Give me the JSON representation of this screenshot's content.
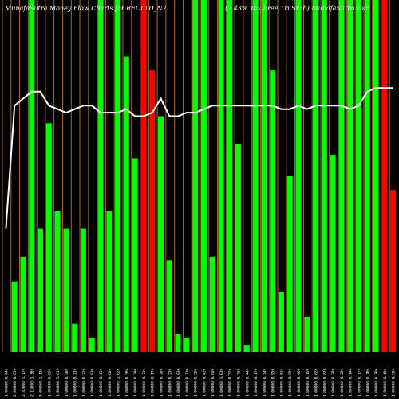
{
  "header": {
    "left_title": "MunafaSutra  Money Flow  Charts for RECLTD_N7",
    "right_title": "(7.43% Tax Free Tri  Sr3b) MunafaSutra.com"
  },
  "colors": {
    "background": "#000000",
    "inflow": "#00ff00",
    "outflow": "#ff0000",
    "gridline": "#b5651d",
    "price_line": "#ffffff",
    "text": "#ffffff"
  },
  "chart_data": {
    "type": "bar",
    "ylim": [
      0,
      100
    ],
    "grid": "vertical lines between bars",
    "categories": [
      "1.00000 0.04%",
      "2.60000 0.61%",
      "2.43000 1.17%",
      "2.13000 1.30%",
      "1.00000 1.12%",
      "1.00000 0.66%",
      "1.00000 1.61%",
      "1.00000 0.38%",
      "1.00000 0.21%",
      "1.00000 0.22%",
      "1.00000 0.93%",
      "1.00000 0.41%",
      "1.00000 0.68%",
      "1.00000 1.62%",
      "1.00000 0.38%",
      "1.00000 0.39%",
      "1.00000 0.33%",
      "1.00000 0.17%",
      "1.00000 0.28%",
      "1.00000 0.23%",
      "1.00000 0.93%",
      "1.00000 0.21%",
      "1.00000 0.25%",
      "1.00000 0.42%",
      "1.00000 0.64%",
      "1.00000 1.03%",
      "1.00000 0.52%",
      "1.00000 0.75%",
      "1.00000 0.44%",
      "1.00000 0.17%",
      "1.00000 0.54%",
      "1.00000 0.95%",
      "1.00000 0.81%",
      "1.00000 0.89%",
      "1.00000 0.46%",
      "1.00000 0.15%",
      "1.00000 0.62%",
      "1.00000 0.82%",
      "1.00000 0.38%",
      "1.00000 0.29%",
      "1.00000 0.14%",
      "1.00000 0.17%",
      "1.00000 0.20%",
      "1.00000 0.30%",
      "1.00000 0.48%",
      "1.00000 0.50%"
    ],
    "series": [
      {
        "values": [
          0,
          20,
          27,
          100,
          35,
          65,
          40,
          35,
          8,
          35,
          4,
          100,
          40,
          100,
          84,
          55,
          100,
          80,
          67,
          26,
          5,
          4,
          100,
          100,
          27,
          100,
          100,
          59,
          2,
          100,
          100,
          80,
          17,
          50,
          100,
          10,
          100,
          100,
          56,
          100,
          100,
          100,
          100,
          100,
          100,
          46
        ],
        "directions": [
          "in",
          "in",
          "in",
          "in",
          "in",
          "in",
          "in",
          "in",
          "in",
          "in",
          "in",
          "in",
          "in",
          "in",
          "in",
          "in",
          "out",
          "out",
          "in",
          "in",
          "in",
          "in",
          "in",
          "in",
          "in",
          "in",
          "in",
          "in",
          "in",
          "in",
          "in",
          "in",
          "in",
          "in",
          "in",
          "in",
          "in",
          "in",
          "in",
          "in",
          "in",
          "in",
          "in",
          "in",
          "out",
          "out"
        ]
      }
    ],
    "price_line": [
      35,
      70,
      72,
      74,
      74,
      70,
      69,
      68,
      69,
      70,
      70,
      68,
      68,
      68,
      69,
      67,
      67,
      68,
      72,
      67,
      67,
      68,
      68,
      69,
      70,
      70,
      70,
      70,
      70,
      70,
      70,
      70,
      69,
      69,
      70,
      69,
      70,
      70,
      70,
      70,
      69,
      70,
      74,
      75,
      75,
      75
    ]
  }
}
